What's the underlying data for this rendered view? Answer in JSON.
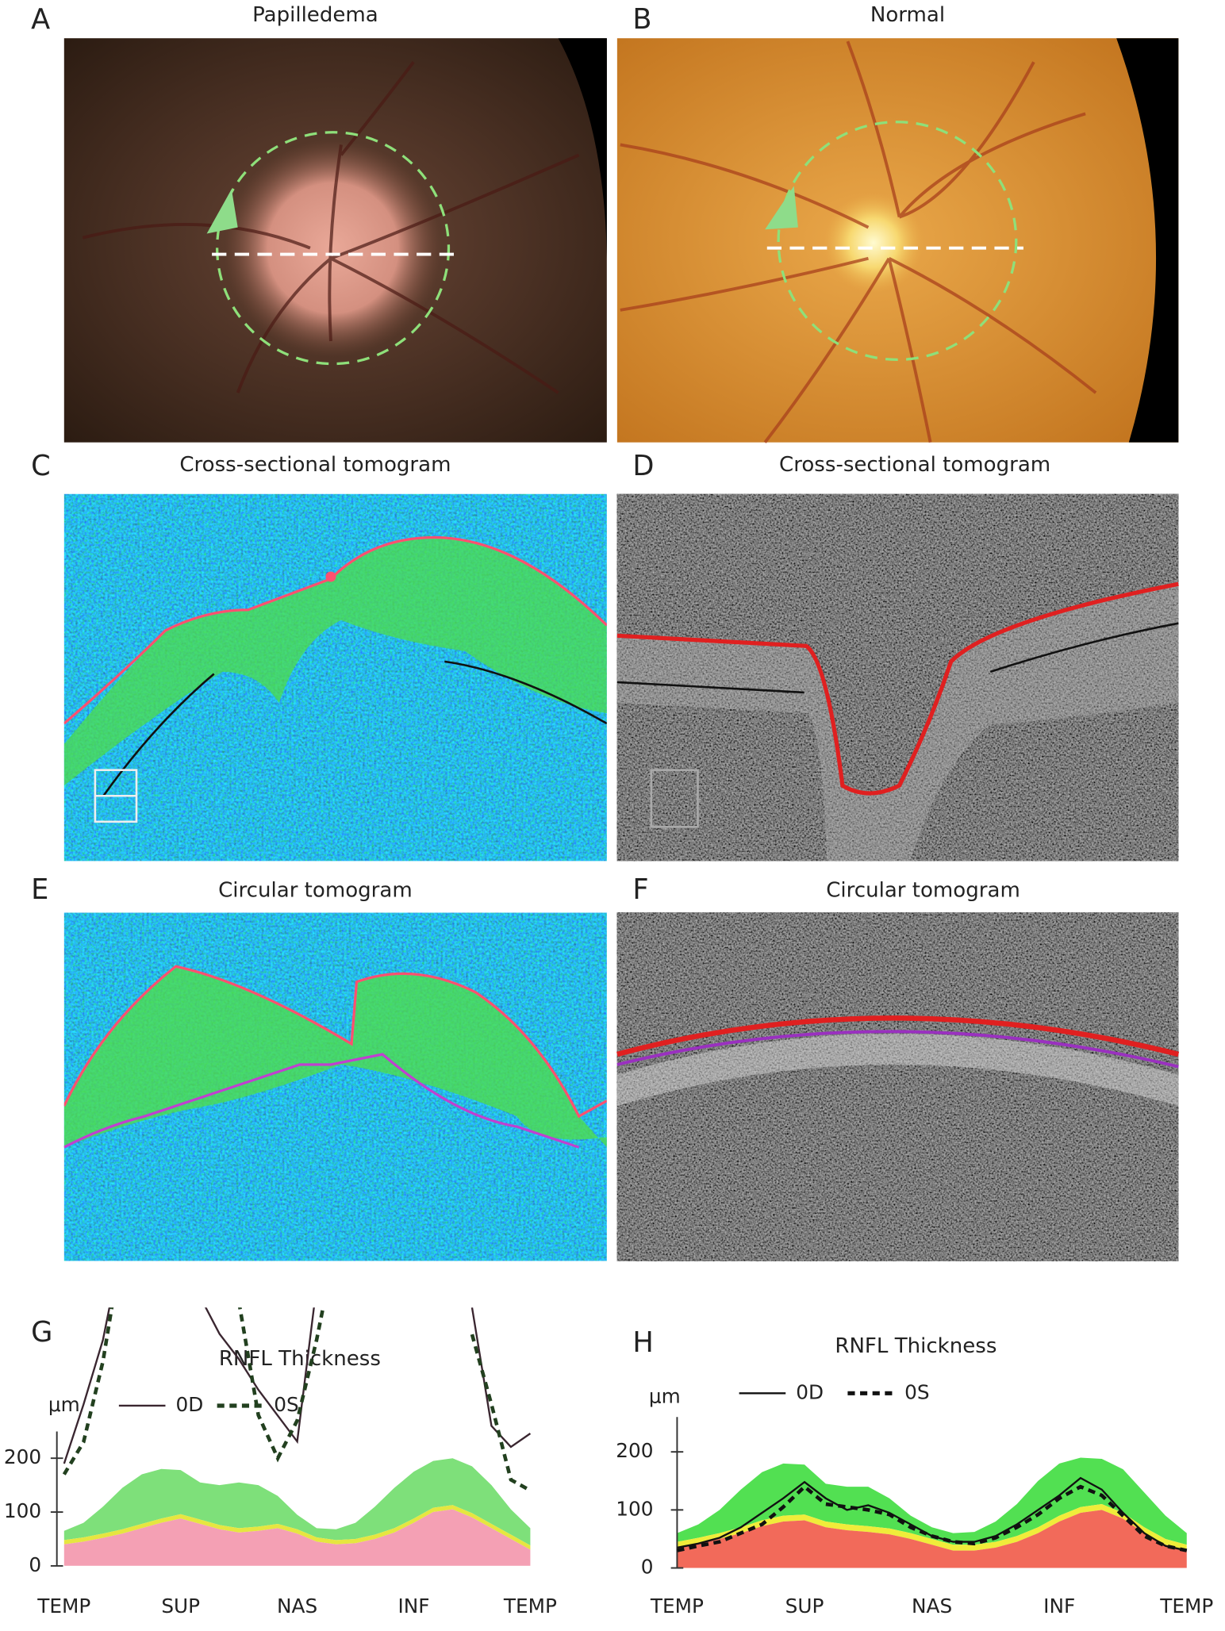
{
  "panels": [
    {
      "label": "A",
      "title": "Papilledema"
    },
    {
      "label": "B",
      "title": "Normal"
    },
    {
      "label": "C",
      "title": "Cross-sectional tomogram"
    },
    {
      "label": "D",
      "title": "Cross-sectional tomogram"
    },
    {
      "label": "E",
      "title": "Circular tomogram"
    },
    {
      "label": "F",
      "title": "Circular tomogram"
    }
  ],
  "chart_data": [
    {
      "type": "line",
      "label": "G",
      "title": "RNFL Thickness",
      "y_unit": "μm",
      "x": [
        0,
        1,
        2,
        3,
        4,
        5,
        6,
        7,
        8,
        9,
        10,
        11,
        12,
        13,
        14,
        15,
        16,
        17,
        18,
        19,
        20,
        21,
        22,
        23,
        24
      ],
      "xlim": [
        0,
        24
      ],
      "xticks": [
        {
          "value": 0,
          "label": "TEMP"
        },
        {
          "value": 6,
          "label": "SUP"
        },
        {
          "value": 12,
          "label": "NAS"
        },
        {
          "value": 18,
          "label": "INF"
        },
        {
          "value": 24,
          "label": "TEMP"
        }
      ],
      "ylim": [
        0,
        480
      ],
      "yticks": [
        0,
        100,
        200
      ],
      "series": [
        {
          "name": "0D",
          "color": "#3a2630",
          "style": "solid",
          "values": [
            190,
            300,
            420,
            600,
            null,
            null,
            null,
            500,
            431,
            384,
            327,
            279,
            231,
            520,
            null,
            null,
            null,
            null,
            null,
            null,
            null,
            480,
            260,
            221,
            246
          ]
        },
        {
          "name": "0S",
          "color": "#22401f",
          "style": "dashed",
          "values": [
            170,
            230,
            380,
            600,
            null,
            null,
            null,
            null,
            null,
            490,
            280,
            200,
            270,
            420,
            600,
            null,
            null,
            null,
            null,
            null,
            null,
            430,
            300,
            160,
            140
          ]
        }
      ],
      "bands": [
        {
          "color": "#f4a0b4",
          "values": [
            40,
            45,
            52,
            60,
            70,
            80,
            88,
            78,
            68,
            62,
            65,
            70,
            60,
            45,
            40,
            42,
            50,
            62,
            80,
            100,
            105,
            90,
            70,
            50,
            30
          ]
        },
        {
          "color": "#e6e640",
          "values": [
            48,
            53,
            60,
            68,
            78,
            88,
            96,
            86,
            76,
            70,
            73,
            78,
            68,
            53,
            48,
            50,
            58,
            70,
            88,
            108,
            113,
            98,
            78,
            58,
            38
          ]
        },
        {
          "color": "#7ee07a",
          "values": [
            65,
            80,
            110,
            145,
            170,
            180,
            178,
            155,
            150,
            155,
            150,
            130,
            95,
            70,
            68,
            80,
            110,
            145,
            175,
            195,
            200,
            185,
            150,
            105,
            70
          ]
        }
      ]
    },
    {
      "type": "line",
      "label": "H",
      "title": "RNFL Thickness",
      "y_unit": "μm",
      "x": [
        0,
        1,
        2,
        3,
        4,
        5,
        6,
        7,
        8,
        9,
        10,
        11,
        12,
        13,
        14,
        15,
        16,
        17,
        18,
        19,
        20,
        21,
        22,
        23,
        24
      ],
      "xlim": [
        0,
        24
      ],
      "xticks": [
        {
          "value": 0,
          "label": "TEMP"
        },
        {
          "value": 6,
          "label": "SUP"
        },
        {
          "value": 12,
          "label": "NAS"
        },
        {
          "value": 18,
          "label": "INF"
        },
        {
          "value": 24,
          "label": "TEMP"
        }
      ],
      "ylim": [
        0,
        260
      ],
      "yticks": [
        0,
        100,
        200
      ],
      "series": [
        {
          "name": "0D",
          "color": "#111111",
          "style": "solid",
          "values": [
            35,
            42,
            52,
            70,
            95,
            120,
            148,
            120,
            100,
            108,
            95,
            75,
            55,
            45,
            45,
            55,
            75,
            100,
            125,
            155,
            135,
            95,
            60,
            38,
            30
          ]
        },
        {
          "name": "0S",
          "color": "#111111",
          "style": "dashed",
          "values": [
            30,
            38,
            45,
            60,
            75,
            105,
            140,
            110,
            105,
            100,
            92,
            70,
            55,
            45,
            42,
            52,
            70,
            92,
            120,
            140,
            125,
            90,
            55,
            38,
            30
          ]
        }
      ],
      "bands": [
        {
          "color": "#f26a5a",
          "values": [
            35,
            42,
            50,
            60,
            72,
            80,
            82,
            70,
            65,
            62,
            58,
            50,
            40,
            30,
            30,
            35,
            45,
            60,
            80,
            95,
            100,
            85,
            60,
            40,
            30
          ]
        },
        {
          "color": "#f0ec3a",
          "values": [
            45,
            52,
            60,
            70,
            82,
            90,
            92,
            80,
            75,
            72,
            68,
            60,
            50,
            40,
            40,
            45,
            55,
            70,
            90,
            105,
            110,
            95,
            70,
            50,
            40
          ]
        },
        {
          "color": "#52e052",
          "values": [
            60,
            75,
            100,
            135,
            165,
            180,
            178,
            145,
            140,
            140,
            120,
            90,
            70,
            60,
            62,
            80,
            110,
            150,
            180,
            190,
            188,
            170,
            130,
            90,
            60
          ]
        }
      ]
    }
  ]
}
